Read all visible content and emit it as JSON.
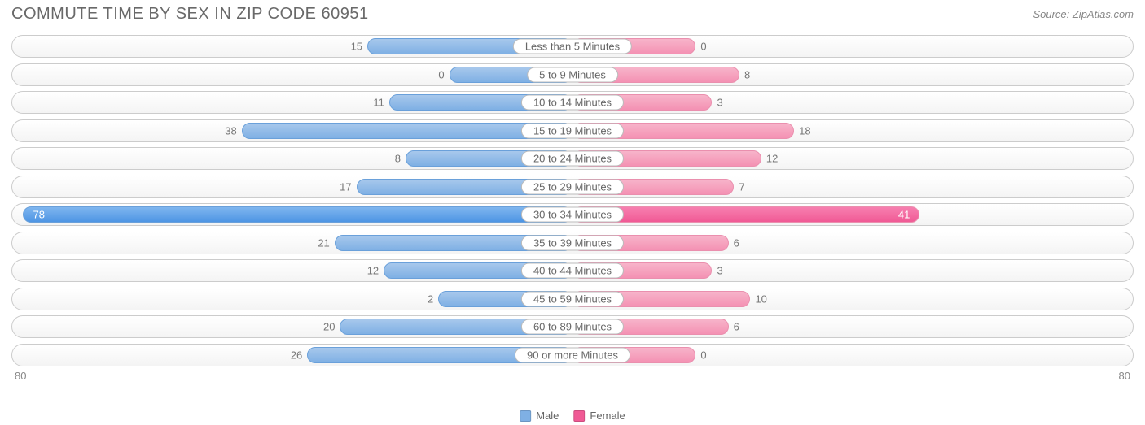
{
  "title": "COMMUTE TIME BY SEX IN ZIP CODE 60951",
  "source": "Source: ZipAtlas.com",
  "axis_max": 80,
  "axis_left_label": "80",
  "axis_right_label": "80",
  "legend": {
    "male": "Male",
    "female": "Female"
  },
  "colors": {
    "male_fill_top": "#a7c8ec",
    "male_fill_bottom": "#7fb0e4",
    "male_border": "#6aa0da",
    "male_hi_top": "#7fb6ef",
    "male_hi_bottom": "#4e95e4",
    "female_fill_top": "#f7b4ca",
    "female_fill_bottom": "#f491b3",
    "female_border": "#ea8fae",
    "female_hi_top": "#f77fb0",
    "female_hi_bottom": "#f05a95",
    "track_border": "#cccccc",
    "text": "#777777",
    "title_color": "#696969",
    "bg": "#ffffff"
  },
  "label_gutter_pct": 11,
  "min_bar_pct": 6.5,
  "rows": [
    {
      "label": "Less than 5 Minutes",
      "male": 15,
      "female": 0,
      "highlight": false
    },
    {
      "label": "5 to 9 Minutes",
      "male": 0,
      "female": 8,
      "highlight": false
    },
    {
      "label": "10 to 14 Minutes",
      "male": 11,
      "female": 3,
      "highlight": false
    },
    {
      "label": "15 to 19 Minutes",
      "male": 38,
      "female": 18,
      "highlight": false
    },
    {
      "label": "20 to 24 Minutes",
      "male": 8,
      "female": 12,
      "highlight": false
    },
    {
      "label": "25 to 29 Minutes",
      "male": 17,
      "female": 7,
      "highlight": false
    },
    {
      "label": "30 to 34 Minutes",
      "male": 78,
      "female": 41,
      "highlight": true
    },
    {
      "label": "35 to 39 Minutes",
      "male": 21,
      "female": 6,
      "highlight": false
    },
    {
      "label": "40 to 44 Minutes",
      "male": 12,
      "female": 3,
      "highlight": false
    },
    {
      "label": "45 to 59 Minutes",
      "male": 2,
      "female": 10,
      "highlight": false
    },
    {
      "label": "60 to 89 Minutes",
      "male": 20,
      "female": 6,
      "highlight": false
    },
    {
      "label": "90 or more Minutes",
      "male": 26,
      "female": 0,
      "highlight": false
    }
  ]
}
